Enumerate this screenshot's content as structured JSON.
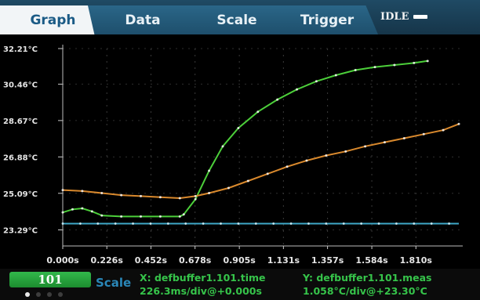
{
  "tabs": [
    {
      "label": "Graph",
      "active": true
    },
    {
      "label": "Data",
      "active": false
    },
    {
      "label": "Scale",
      "active": false
    },
    {
      "label": "Trigger",
      "active": false
    }
  ],
  "status": {
    "label": "IDLE"
  },
  "bottom": {
    "reading_count": "101",
    "scale_label": "Scale",
    "x_readout_line1": "X: defbuffer1.101.time",
    "x_readout_line2": "226.3ms/div@+0.000s",
    "y_readout_line1": "Y: defbuffer1.101.meas",
    "y_readout_line2": "1.058°C/div@+23.30°C",
    "page_indicator": {
      "pages": 4,
      "current": 1
    }
  },
  "colors": {
    "tab_active_text": "#1b5b86",
    "series_green": "#4ccf3a",
    "series_orange": "#d9892d",
    "series_cyan": "#3fa9c8",
    "readout_green": "#36c44a",
    "scale_blue": "#2a87b8"
  },
  "chart_data": {
    "type": "line",
    "title": "",
    "xlabel": "",
    "ylabel": "",
    "ylim": [
      22.5,
      32.21
    ],
    "xlim": [
      0.0,
      2.05
    ],
    "y_ticks": [
      32.21,
      30.46,
      28.67,
      26.88,
      25.09,
      23.29
    ],
    "y_tick_labels": [
      "32.21°C",
      "30.46°C",
      "28.67°C",
      "26.88°C",
      "25.09°C",
      "23.29°C"
    ],
    "x_ticks": [
      0.0,
      0.226,
      0.452,
      0.678,
      0.905,
      1.131,
      1.357,
      1.584,
      1.81
    ],
    "x_tick_labels": [
      "0.000s",
      "0.226s",
      "0.452s",
      "0.678s",
      "0.905s",
      "1.131s",
      "1.357s",
      "1.584s",
      "1.810s"
    ],
    "grid": true,
    "legend": "none",
    "series": [
      {
        "color": "#4ccf3a",
        "x": [
          0.0,
          0.05,
          0.1,
          0.15,
          0.2,
          0.3,
          0.4,
          0.5,
          0.6,
          0.62,
          0.68,
          0.75,
          0.82,
          0.9,
          1.0,
          1.1,
          1.2,
          1.3,
          1.4,
          1.5,
          1.6,
          1.7,
          1.8,
          1.87
        ],
        "y": [
          24.15,
          24.3,
          24.35,
          24.2,
          24.0,
          23.95,
          23.95,
          23.95,
          23.95,
          24.05,
          24.8,
          26.2,
          27.4,
          28.3,
          29.1,
          29.7,
          30.2,
          30.6,
          30.9,
          31.15,
          31.3,
          31.4,
          31.5,
          31.6
        ]
      },
      {
        "color": "#d9892d",
        "x": [
          0.0,
          0.1,
          0.2,
          0.3,
          0.4,
          0.5,
          0.6,
          0.68,
          0.75,
          0.85,
          0.95,
          1.05,
          1.15,
          1.25,
          1.35,
          1.45,
          1.55,
          1.65,
          1.75,
          1.85,
          1.95,
          2.03
        ],
        "y": [
          25.25,
          25.2,
          25.1,
          25.0,
          24.95,
          24.9,
          24.85,
          24.95,
          25.1,
          25.35,
          25.7,
          26.05,
          26.4,
          26.7,
          26.95,
          27.15,
          27.4,
          27.6,
          27.8,
          28.0,
          28.2,
          28.5
        ]
      },
      {
        "color": "#3fa9c8",
        "x": [
          0.0,
          2.03
        ],
        "y": [
          23.6,
          23.6
        ]
      }
    ]
  }
}
